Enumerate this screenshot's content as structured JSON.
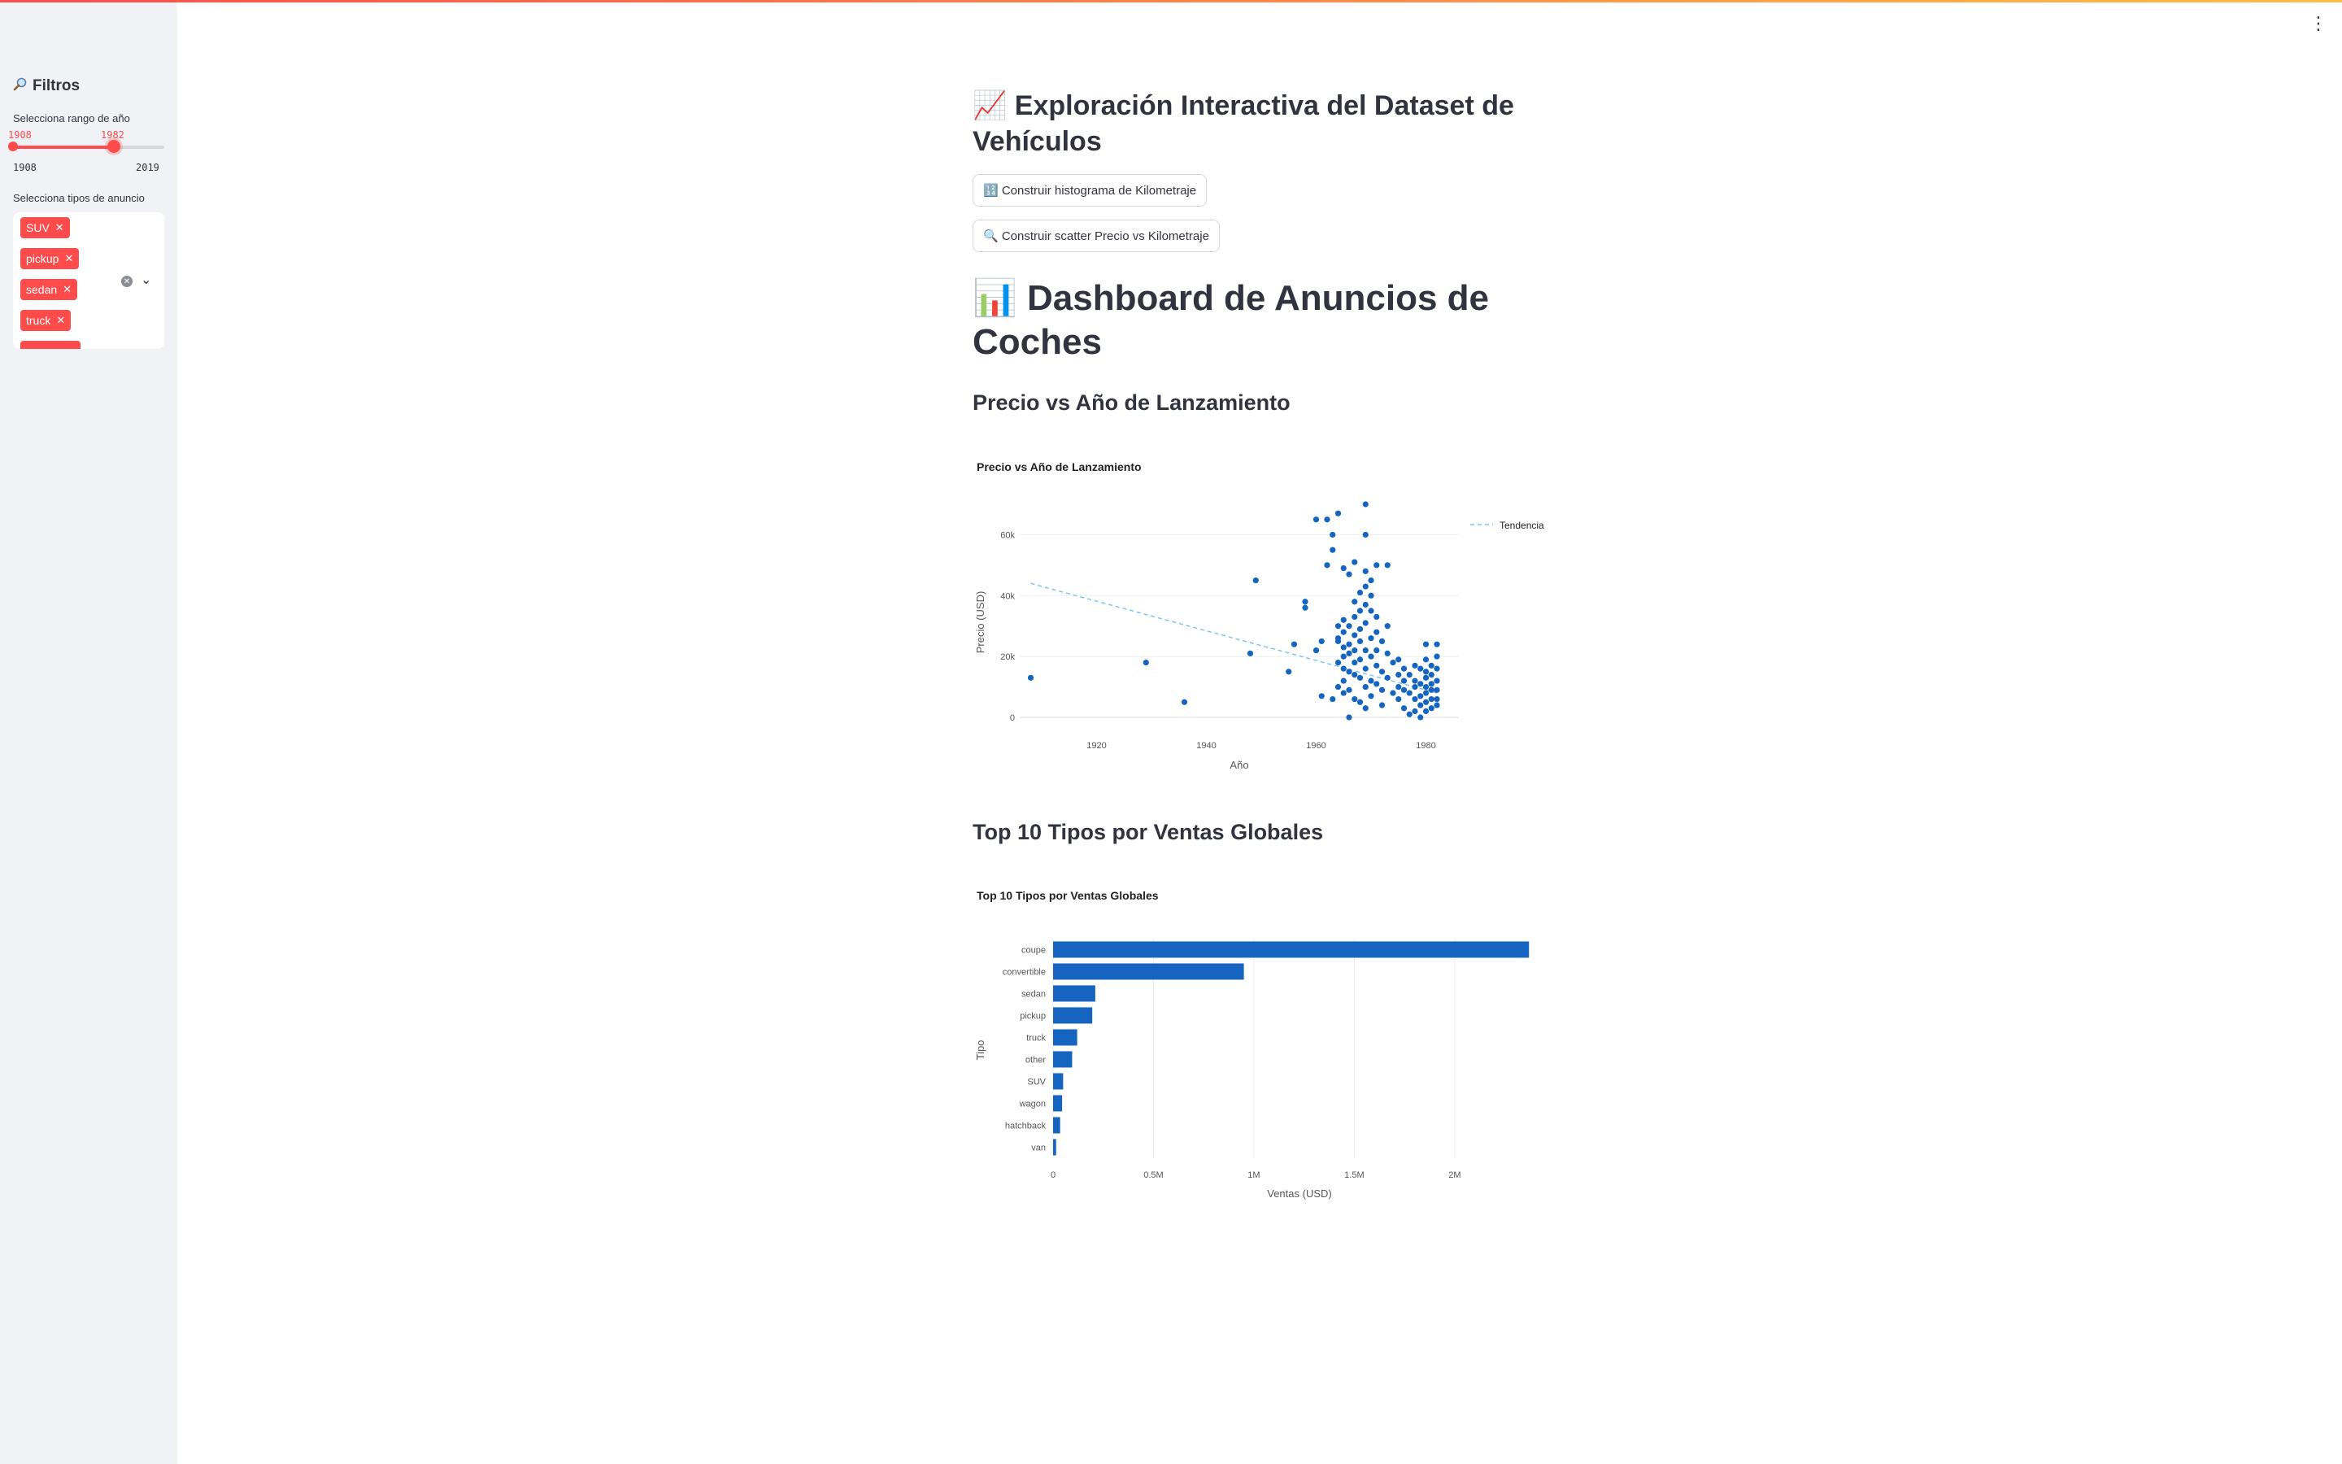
{
  "sidebar": {
    "title": "Filtros",
    "title_icon": "magnifier-icon",
    "year_label": "Selecciona rango de año",
    "year_range": {
      "min": 1908,
      "max": 2019,
      "low": 1908,
      "high": 1982
    },
    "year_min_label": "1908",
    "year_max_label": "2019",
    "year_low_label": "1908",
    "year_high_label": "1982",
    "types_label": "Selecciona tipos de anuncio",
    "selected_types": [
      "SUV",
      "pickup",
      "sedan",
      "truck"
    ],
    "accent": "#ff4b4b"
  },
  "main": {
    "title": "📈 Exploración Interactiva del Dataset de Vehículos",
    "btn_hist": "🔢 Construir histograma de Kilometraje",
    "btn_scatter": "🔍 Construir scatter Precio vs Kilometraje",
    "dashboard_title": "📊 Dashboard de Anuncios de Coches",
    "section1": "Precio vs Año de Lanzamiento",
    "section2": "Top 10 Tipos por Ventas Globales"
  },
  "chart_data": [
    {
      "type": "scatter",
      "title": "Precio vs Año de Lanzamiento",
      "xlabel": "Año",
      "ylabel": "Precio (USD)",
      "xticks": [
        "1920",
        "1940",
        "1960",
        "1980"
      ],
      "yticks": [
        "0",
        "20k",
        "40k",
        "60k"
      ],
      "xlim": [
        1906,
        1986
      ],
      "ylim": [
        0,
        70000
      ],
      "legend": "top-right",
      "trend_name": "Tendencia",
      "trend": {
        "x": [
          1908,
          1982
        ],
        "y": [
          44000,
          8000
        ]
      },
      "color": "#1565c0",
      "trend_color": "#7fc4f0",
      "points": [
        [
          1908,
          13000
        ],
        [
          1929,
          18000
        ],
        [
          1936,
          5000
        ],
        [
          1949,
          45000
        ],
        [
          1948,
          21000
        ],
        [
          1955,
          15000
        ],
        [
          1956,
          24000
        ],
        [
          1958,
          36000
        ],
        [
          1958,
          38000
        ],
        [
          1960,
          65000
        ],
        [
          1960,
          22000
        ],
        [
          1961,
          25000
        ],
        [
          1961,
          7000
        ],
        [
          1962,
          65000
        ],
        [
          1962,
          50000
        ],
        [
          1963,
          55000
        ],
        [
          1963,
          60000
        ],
        [
          1963,
          6000
        ],
        [
          1964,
          67000
        ],
        [
          1964,
          30000
        ],
        [
          1964,
          26000
        ],
        [
          1964,
          18000
        ],
        [
          1964,
          10000
        ],
        [
          1964,
          25000
        ],
        [
          1965,
          32000
        ],
        [
          1965,
          28000
        ],
        [
          1965,
          23000
        ],
        [
          1965,
          20000
        ],
        [
          1965,
          16000
        ],
        [
          1965,
          12000
        ],
        [
          1965,
          8000
        ],
        [
          1965,
          49000
        ],
        [
          1966,
          47000
        ],
        [
          1966,
          30000
        ],
        [
          1966,
          24000
        ],
        [
          1966,
          21000
        ],
        [
          1966,
          15000
        ],
        [
          1966,
          9000
        ],
        [
          1966,
          0
        ],
        [
          1967,
          38000
        ],
        [
          1967,
          33000
        ],
        [
          1967,
          27000
        ],
        [
          1967,
          22000
        ],
        [
          1967,
          18000
        ],
        [
          1967,
          14000
        ],
        [
          1967,
          6000
        ],
        [
          1967,
          51000
        ],
        [
          1968,
          41000
        ],
        [
          1968,
          35000
        ],
        [
          1968,
          29000
        ],
        [
          1968,
          25000
        ],
        [
          1968,
          19000
        ],
        [
          1968,
          13000
        ],
        [
          1968,
          5000
        ],
        [
          1969,
          70000
        ],
        [
          1969,
          60000
        ],
        [
          1969,
          48000
        ],
        [
          1969,
          43000
        ],
        [
          1969,
          37000
        ],
        [
          1969,
          31000
        ],
        [
          1969,
          22000
        ],
        [
          1969,
          16000
        ],
        [
          1969,
          10000
        ],
        [
          1969,
          3000
        ],
        [
          1970,
          45000
        ],
        [
          1970,
          40000
        ],
        [
          1970,
          35000
        ],
        [
          1970,
          26000
        ],
        [
          1970,
          20000
        ],
        [
          1970,
          12000
        ],
        [
          1970,
          7000
        ],
        [
          1971,
          50000
        ],
        [
          1971,
          33000
        ],
        [
          1971,
          28000
        ],
        [
          1971,
          22000
        ],
        [
          1971,
          17000
        ],
        [
          1971,
          11000
        ],
        [
          1972,
          25000
        ],
        [
          1972,
          15000
        ],
        [
          1972,
          9000
        ],
        [
          1972,
          4000
        ],
        [
          1973,
          50000
        ],
        [
          1973,
          30000
        ],
        [
          1973,
          21000
        ],
        [
          1973,
          13000
        ],
        [
          1974,
          18000
        ],
        [
          1974,
          8000
        ],
        [
          1975,
          19000
        ],
        [
          1975,
          14000
        ],
        [
          1975,
          10000
        ],
        [
          1975,
          6000
        ],
        [
          1976,
          16000
        ],
        [
          1976,
          12000
        ],
        [
          1976,
          9000
        ],
        [
          1976,
          3000
        ],
        [
          1977,
          14000
        ],
        [
          1977,
          8000
        ],
        [
          1977,
          1000
        ],
        [
          1978,
          17000
        ],
        [
          1978,
          12000
        ],
        [
          1978,
          10000
        ],
        [
          1978,
          6000
        ],
        [
          1978,
          2000
        ],
        [
          1979,
          16000
        ],
        [
          1979,
          11000
        ],
        [
          1979,
          7000
        ],
        [
          1979,
          4000
        ],
        [
          1979,
          0
        ],
        [
          1980,
          24000
        ],
        [
          1980,
          19000
        ],
        [
          1980,
          15000
        ],
        [
          1980,
          13000
        ],
        [
          1980,
          10000
        ],
        [
          1980,
          8000
        ],
        [
          1980,
          5000
        ],
        [
          1980,
          2000
        ],
        [
          1981,
          17000
        ],
        [
          1981,
          14000
        ],
        [
          1981,
          11000
        ],
        [
          1981,
          9000
        ],
        [
          1981,
          6000
        ],
        [
          1981,
          3000
        ],
        [
          1982,
          24000
        ],
        [
          1982,
          20000
        ],
        [
          1982,
          16000
        ],
        [
          1982,
          12000
        ],
        [
          1982,
          9000
        ],
        [
          1982,
          6000
        ],
        [
          1982,
          4000
        ]
      ]
    },
    {
      "type": "bar",
      "orientation": "horizontal",
      "title": "Top 10 Tipos por Ventas Globales",
      "xlabel": "Ventas (USD)",
      "ylabel": "Tipo",
      "xticks": [
        "0",
        "0.5M",
        "1M",
        "1.5M",
        "2M"
      ],
      "xlim": [
        0,
        2450000
      ],
      "categories": [
        "coupe",
        "convertible",
        "sedan",
        "pickup",
        "truck",
        "other",
        "SUV",
        "wagon",
        "hatchback",
        "van"
      ],
      "values": [
        2370000,
        950000,
        210000,
        195000,
        120000,
        95000,
        50000,
        45000,
        35000,
        15000
      ],
      "color": "#1565c0"
    }
  ]
}
